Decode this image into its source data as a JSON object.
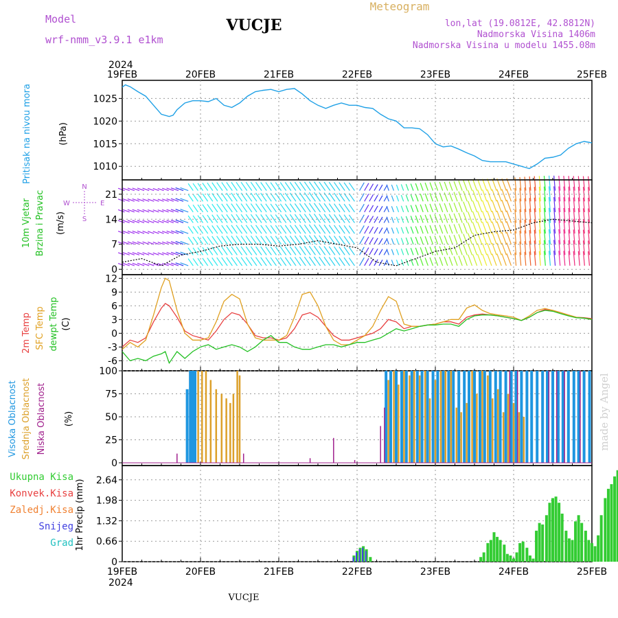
{
  "header": {
    "model_label": "Model",
    "model_name": "wrf-nmm_v3.9.1  e1km",
    "station": "VUCJE",
    "meteogram_label": "Meteogram",
    "lonlat": "lon,lat (19.0812E, 42.8812N)",
    "elevation": "Nadmorska Visina 1406m",
    "model_elevation": "Nadmorska Visina u modelu 1455.08m",
    "watermark": "made by Angel",
    "footer_station": "VUCJE"
  },
  "time_axis": {
    "year_top": "2024",
    "year_bottom": "2024",
    "labels": [
      "19FEB",
      "20FEB",
      "21FEB",
      "22FEB",
      "23FEB",
      "24FEB",
      "25FEB"
    ]
  },
  "colors": {
    "pressure": "#1ea0e6",
    "temp2m": "#e84040",
    "sfc_temp": "#e0a020",
    "dewpoint": "#22c022",
    "high_cloud": "#1e96e0",
    "mid_cloud": "#dca02a",
    "low_cloud": "#a0208c",
    "precip_total": "#33cc33",
    "precip_conv": "#e84040",
    "precip_frozen": "#f08030",
    "snow": "#4040e0",
    "graupel": "#20c0c0",
    "label_purple": "#b050d0",
    "label_gold": "#d8b060"
  },
  "panels": {
    "pressure": {
      "label": "Pritisak na nivou mora",
      "unit": "(hPa)",
      "yticks": [
        "1010",
        "1015",
        "1020",
        "1025"
      ]
    },
    "wind": {
      "label1": "10m Vjetar",
      "label2": "Brzina i Pravac",
      "unit": "(m/s)",
      "yticks": [
        "0",
        "7",
        "14",
        "21"
      ],
      "compass": {
        "n": "N",
        "s": "S",
        "e": "E",
        "w": "W"
      }
    },
    "temperature": {
      "label_2m": "2m Temp",
      "label_sfc": "SFC Temp",
      "label_dew": "dewpt Temp",
      "unit": "(C)",
      "yticks": [
        "-6",
        "-3",
        "0",
        "3",
        "6",
        "9",
        "12"
      ]
    },
    "cloud": {
      "label_high": "Visoka Oblacnost",
      "label_mid": "Srednja Oblacnost",
      "label_low": "Niska Oblacnost",
      "unit": "(%)",
      "yticks": [
        "0",
        "25",
        "50",
        "75",
        "100"
      ]
    },
    "precip": {
      "legend": [
        "Ukupna Kisa",
        "Konvek.Kisa",
        "Zaledj.Kisa",
        "Snijeg",
        "Grad"
      ],
      "unit": "1hr Precip (mm)",
      "yticks": [
        "0",
        "0.66",
        "1.32",
        "1.98",
        "2.64"
      ]
    }
  },
  "chart_data": [
    {
      "type": "line",
      "title": "Pritisak na nivou mora",
      "ylabel": "(hPa)",
      "ylim": [
        1007,
        1029
      ],
      "x_unit": "days since 19FEB 00UTC",
      "x": [
        0,
        0.04,
        0.1,
        0.2,
        0.3,
        0.4,
        0.5,
        0.6,
        0.65,
        0.7,
        0.8,
        0.9,
        1.0,
        1.1,
        1.2,
        1.3,
        1.4,
        1.5,
        1.6,
        1.7,
        1.8,
        1.9,
        2.0,
        2.1,
        2.2,
        2.3,
        2.4,
        2.5,
        2.6,
        2.7,
        2.8,
        2.9,
        3.0,
        3.1,
        3.2,
        3.3,
        3.4,
        3.5,
        3.6,
        3.7,
        3.8,
        3.9,
        4.0,
        4.1,
        4.2,
        4.3,
        4.4,
        4.5,
        4.6,
        4.7,
        4.8,
        4.9,
        5.0,
        5.1,
        5.2,
        5.3,
        5.4,
        5.5,
        5.6,
        5.7,
        5.8,
        5.9,
        6.0
      ],
      "series": [
        {
          "name": "Pritisak na nivou mora",
          "values": [
            1027.5,
            1028.0,
            1027.6,
            1026.5,
            1025.5,
            1023.5,
            1021.5,
            1021.0,
            1021.3,
            1022.5,
            1024.0,
            1024.5,
            1024.5,
            1024.3,
            1025.0,
            1023.5,
            1023.0,
            1024.0,
            1025.5,
            1026.5,
            1026.8,
            1027.0,
            1026.5,
            1027.0,
            1027.2,
            1026.0,
            1024.5,
            1023.5,
            1022.8,
            1023.5,
            1024.0,
            1023.5,
            1023.5,
            1023.0,
            1022.8,
            1021.5,
            1020.5,
            1020.0,
            1018.5,
            1018.5,
            1018.3,
            1017.0,
            1015.0,
            1014.3,
            1014.5,
            1013.8,
            1013.0,
            1012.3,
            1011.3,
            1011.0,
            1011.0,
            1011.0,
            1010.5,
            1010.0,
            1009.5,
            1010.5,
            1011.8,
            1012.0,
            1012.5,
            1014.0,
            1015.0,
            1015.5,
            1015.2
          ]
        }
      ]
    },
    {
      "type": "line",
      "title": "10m Vjetar Brzina i Pravac",
      "ylabel": "(m/s)",
      "ylim": [
        -1.5,
        25
      ],
      "x": [
        0,
        0.25,
        0.5,
        0.75,
        1.0,
        1.25,
        1.5,
        1.75,
        2.0,
        2.25,
        2.5,
        2.75,
        3.0,
        3.25,
        3.5,
        3.75,
        4.0,
        4.25,
        4.5,
        4.75,
        5.0,
        5.25,
        5.5,
        5.75,
        6.0
      ],
      "series": [
        {
          "name": "10m Vjetar",
          "values": [
            2,
            3,
            1,
            4,
            5,
            6.5,
            7,
            7,
            6.5,
            7,
            8,
            7,
            6,
            2,
            1,
            3,
            5,
            6,
            9.5,
            10.5,
            11,
            13,
            14,
            13.5,
            13
          ]
        }
      ]
    },
    {
      "type": "line",
      "title": "Temperature",
      "ylabel": "(C)",
      "ylim": [
        -8.2,
        12.8
      ],
      "x": [
        0,
        0.1,
        0.2,
        0.3,
        0.4,
        0.5,
        0.55,
        0.6,
        0.7,
        0.8,
        0.9,
        1.0,
        1.1,
        1.2,
        1.3,
        1.4,
        1.5,
        1.6,
        1.7,
        1.8,
        1.9,
        2.0,
        2.1,
        2.2,
        2.3,
        2.4,
        2.5,
        2.6,
        2.7,
        2.8,
        2.9,
        3.0,
        3.1,
        3.2,
        3.3,
        3.4,
        3.5,
        3.6,
        3.7,
        3.8,
        3.9,
        4.0,
        4.1,
        4.2,
        4.3,
        4.4,
        4.5,
        4.6,
        4.7,
        4.8,
        4.9,
        5.0,
        5.1,
        5.2,
        5.3,
        5.4,
        5.5,
        5.6,
        5.7,
        5.8,
        5.9,
        6.0
      ],
      "series": [
        {
          "name": "2m Temp",
          "values": [
            -3,
            -1.5,
            -2,
            -1,
            2.5,
            5.5,
            6.5,
            6,
            3.5,
            0.5,
            -0.5,
            -1,
            -1.5,
            0.5,
            3,
            4.5,
            4,
            2,
            -0.5,
            -1,
            -1,
            -1.5,
            -1,
            1,
            4,
            4.5,
            3.5,
            1.5,
            -0.5,
            -1.5,
            -1.5,
            -1,
            -0.5,
            0,
            1,
            3,
            2.5,
            1,
            1.5,
            1.5,
            1.8,
            2,
            2.5,
            2.5,
            2,
            3.5,
            4,
            4.2,
            4,
            3.8,
            3.5,
            3.2,
            2.8,
            3.5,
            4.5,
            5.2,
            5,
            4.5,
            4,
            3.5,
            3.4,
            3.2
          ]
        },
        {
          "name": "SFC Temp",
          "values": [
            -3.5,
            -2,
            -3,
            -1.5,
            4,
            10,
            12,
            11.5,
            5,
            0,
            -1.5,
            -1.5,
            -1,
            2.5,
            7,
            8.5,
            7.5,
            2,
            -1,
            -1.5,
            -1.5,
            -1.5,
            -0.5,
            3.5,
            8.5,
            9,
            6,
            1.5,
            -1.5,
            -2.5,
            -2.5,
            -1.5,
            -0.5,
            1.5,
            5,
            8,
            7,
            2,
            1.5,
            1.5,
            1.8,
            2,
            2.5,
            3,
            3,
            5.5,
            6.2,
            5,
            4.3,
            4,
            3.8,
            3.5,
            2.8,
            3.8,
            5,
            5.4,
            5,
            4.5,
            4,
            3.5,
            3.3,
            3
          ]
        },
        {
          "name": "dewpt Temp",
          "values": [
            -4,
            -6,
            -5.5,
            -6,
            -5,
            -4.5,
            -4,
            -6.5,
            -4,
            -5.5,
            -4,
            -3,
            -2.5,
            -3.5,
            -3,
            -2.5,
            -3,
            -4,
            -3,
            -1.5,
            -0.5,
            -2,
            -2,
            -3,
            -3.5,
            -3.5,
            -3,
            -2.5,
            -2.5,
            -3,
            -2.5,
            -2,
            -2,
            -1.5,
            -1,
            0,
            1,
            0.5,
            1,
            1.5,
            1.8,
            1.8,
            2,
            2,
            1.5,
            3,
            3.8,
            4,
            4,
            3.8,
            3.5,
            3.2,
            2.8,
            3.5,
            4.5,
            5,
            4.8,
            4.3,
            3.8,
            3.4,
            3.3,
            3
          ]
        }
      ]
    },
    {
      "type": "bar",
      "title": "Oblacnost",
      "ylabel": "(%)",
      "ylim": [
        -3,
        100
      ],
      "x_unit": "days since 19FEB 00UTC",
      "series": [
        {
          "name": "Visoka Oblacnost",
          "x": [
            0.83,
            0.87,
            0.9,
            0.93,
            3.37,
            3.43,
            3.5,
            3.57,
            3.63,
            3.7,
            3.77,
            3.83,
            3.9,
            3.97,
            4.03,
            4.1,
            4.17,
            4.23,
            4.3,
            4.37,
            4.43,
            4.5,
            4.57,
            4.63,
            4.7,
            4.77,
            4.83,
            4.9,
            4.97,
            5.03,
            5.1,
            5.17,
            5.23,
            5.3,
            5.37,
            5.43,
            5.5,
            5.57,
            5.63,
            5.7,
            5.77,
            5.83,
            5.9,
            5.97
          ],
          "values": [
            80,
            100,
            100,
            100,
            100,
            100,
            100,
            100,
            100,
            100,
            100,
            100,
            100,
            100,
            100,
            100,
            100,
            100,
            100,
            100,
            100,
            100,
            100,
            100,
            100,
            100,
            100,
            100,
            100,
            100,
            100,
            100,
            100,
            100,
            100,
            100,
            100,
            100,
            100,
            100,
            100,
            100,
            100,
            100
          ]
        },
        {
          "name": "Srednja Oblacnost",
          "x": [
            0.97,
            1.02,
            1.07,
            1.13,
            1.2,
            1.27,
            1.33,
            1.38,
            1.42,
            1.47,
            1.5,
            3.4,
            3.47,
            3.53,
            3.6,
            3.67,
            3.73,
            3.8,
            3.87,
            3.93,
            4.0,
            4.07,
            4.13,
            4.2,
            4.27,
            4.33,
            4.4,
            4.47,
            4.53,
            4.6,
            4.67,
            4.73,
            4.8,
            4.87,
            4.93,
            5.0,
            5.07,
            5.13
          ],
          "values": [
            100,
            100,
            100,
            90,
            80,
            75,
            70,
            65,
            75,
            100,
            95,
            90,
            100,
            85,
            100,
            95,
            100,
            95,
            100,
            70,
            90,
            100,
            100,
            100,
            60,
            55,
            65,
            100,
            75,
            100,
            95,
            70,
            80,
            55,
            75,
            65,
            55,
            50
          ]
        },
        {
          "name": "Niska Oblacnost",
          "x": [
            0.7,
            1.55,
            2.4,
            2.7,
            2.97,
            3.3,
            3.35,
            4.95,
            5.05,
            5.45,
            5.55,
            5.65,
            5.85
          ],
          "values": [
            10,
            10,
            5,
            27,
            3,
            40,
            60,
            100,
            100,
            100,
            100,
            100,
            100
          ]
        }
      ]
    },
    {
      "type": "bar",
      "title": "1hr Precip",
      "ylabel": "1hr Precip (mm)",
      "ylim": [
        0,
        3.1
      ],
      "x_unit": "days since 19FEB 00UTC",
      "series": [
        {
          "name": "Ukupna Kisa",
          "x": [
            3.96,
            4.0,
            4.04,
            4.08,
            4.12,
            4.17,
            5.58,
            5.62,
            5.67,
            5.71,
            5.75,
            5.79,
            5.83,
            5.88,
            5.92,
            5.96,
            6.0,
            6.04,
            6.08,
            6.12,
            6.17,
            6.21,
            6.25,
            6.29,
            6.33,
            6.37,
            6.42,
            6.46,
            6.5,
            6.54,
            6.58,
            6.62,
            6.67,
            6.71,
            6.75,
            6.79,
            6.83,
            6.87,
            6.92,
            6.96,
            7.0,
            7.04,
            7.08,
            7.12,
            7.17,
            7.21,
            7.25,
            7.29,
            7.33,
            7.37,
            7.42,
            7.46,
            7.5,
            7.54,
            7.58,
            7.62,
            7.67,
            7.71,
            7.75,
            7.79,
            7.83,
            7.87,
            7.92,
            7.96,
            8.0
          ],
          "values": [
            0.2,
            0.35,
            0.45,
            0.5,
            0.4,
            0.15,
            0.15,
            0.3,
            0.6,
            0.7,
            0.95,
            0.8,
            0.7,
            0.55,
            0.25,
            0.2,
            0.1,
            0.3,
            0.6,
            0.65,
            0.45,
            0.2,
            0.1,
            1.0,
            1.25,
            1.2,
            1.5,
            1.9,
            2.05,
            2.1,
            1.9,
            1.55,
            1.0,
            0.75,
            0.7,
            1.3,
            1.5,
            1.25,
            1.0,
            0.7,
            0.6,
            0.5,
            0.85,
            1.5,
            2.05,
            2.35,
            2.5,
            2.75,
            2.95,
            3.0,
            2.9,
            2.75,
            2.6,
            2.3,
            2.0,
            1.55,
            1.1,
            0.85,
            0.8,
            1.25,
            1.35,
            1.65,
            1.55,
            0.75,
            0.8
          ]
        },
        {
          "name": "Snijeg",
          "x": [
            3.96,
            4.0,
            4.04,
            4.08,
            4.12
          ],
          "values": [
            0.15,
            0.3,
            0.4,
            0.45,
            0.35
          ]
        }
      ]
    }
  ]
}
